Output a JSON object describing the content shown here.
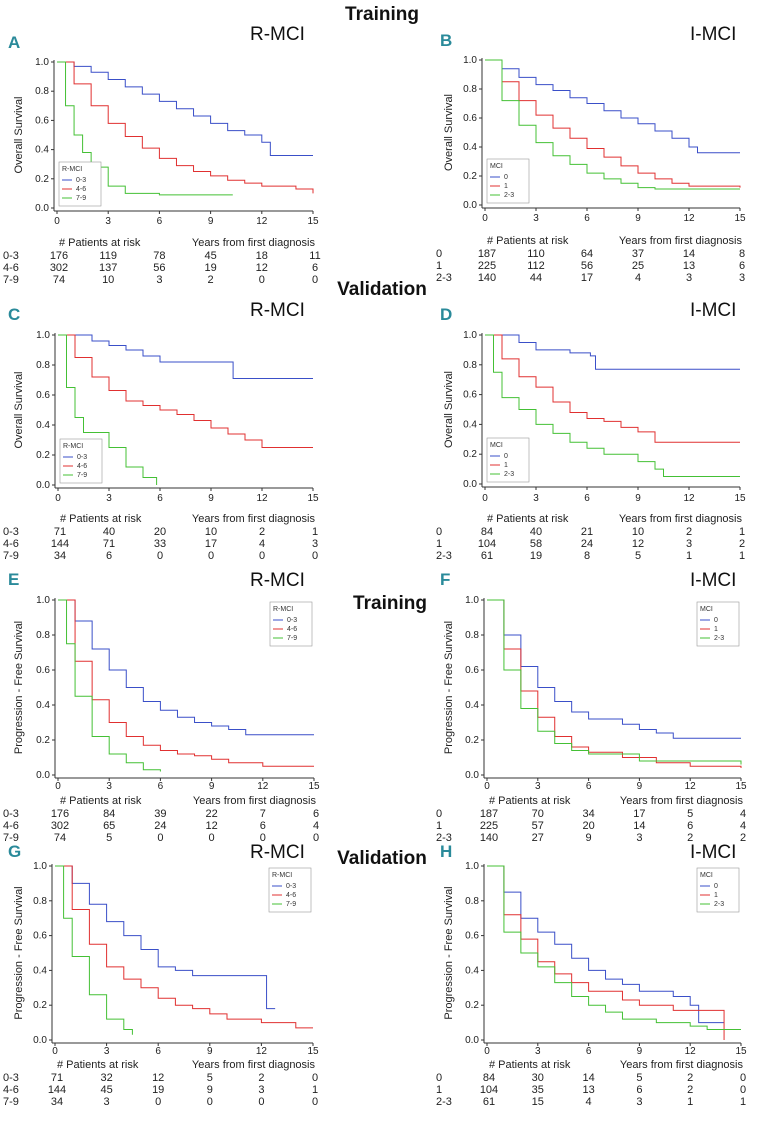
{
  "sections": [
    "Training",
    "Validation",
    "Training",
    "Validation"
  ],
  "common": {
    "risk_header": "# Patients at risk",
    "xlabel": "Years from first diagnosis",
    "x_ticks": [
      "0",
      "3",
      "6",
      "9",
      "12",
      "15"
    ],
    "y_ticks": [
      "0.0",
      "0.2",
      "0.4",
      "0.6",
      "0.8",
      "1.0"
    ]
  },
  "chart_data": [
    {
      "panel": "A",
      "title": "R-MCI",
      "type": "line",
      "ylabel": "Overall Survival",
      "legend_title": "R-MCI",
      "xlim": [
        0,
        15
      ],
      "ylim": [
        0,
        1
      ],
      "series": [
        {
          "name": "0-3",
          "color": "#3a4fc8",
          "x": [
            0,
            1,
            2,
            3,
            4,
            5,
            6,
            7,
            8,
            9,
            10,
            11,
            12,
            12.5,
            15
          ],
          "y": [
            1,
            0.97,
            0.93,
            0.88,
            0.83,
            0.78,
            0.73,
            0.68,
            0.63,
            0.58,
            0.53,
            0.5,
            0.45,
            0.36,
            0.36
          ]
        },
        {
          "name": "4-6",
          "color": "#e03030",
          "x": [
            0,
            1,
            2,
            3,
            4,
            5,
            6,
            7,
            8,
            9,
            10,
            11,
            12,
            14,
            15
          ],
          "y": [
            1,
            0.85,
            0.7,
            0.58,
            0.49,
            0.41,
            0.34,
            0.29,
            0.25,
            0.22,
            0.19,
            0.17,
            0.15,
            0.13,
            0.1
          ]
        },
        {
          "name": "7-9",
          "color": "#44c035",
          "x": [
            0,
            0.5,
            1,
            1.5,
            2,
            3,
            4,
            6,
            10.3
          ],
          "y": [
            1,
            0.7,
            0.5,
            0.38,
            0.28,
            0.15,
            0.1,
            0.09,
            0.09
          ]
        }
      ],
      "risk_table": [
        {
          "label": "0-3",
          "values": [
            "176",
            "119",
            "78",
            "45",
            "18",
            "11"
          ]
        },
        {
          "label": "4-6",
          "values": [
            "302",
            "137",
            "56",
            "19",
            "12",
            "6"
          ]
        },
        {
          "label": "7-9",
          "values": [
            "74",
            "10",
            "3",
            "2",
            "0",
            "0"
          ]
        }
      ]
    },
    {
      "panel": "B",
      "title": "I-MCI",
      "type": "line",
      "ylabel": "Overall Survival",
      "legend_title": "MCI",
      "xlim": [
        0,
        15
      ],
      "ylim": [
        0,
        1
      ],
      "series": [
        {
          "name": "0",
          "color": "#3a4fc8",
          "x": [
            0,
            1,
            2,
            3,
            4,
            5,
            6,
            7,
            8,
            9,
            10,
            11,
            12,
            12.5,
            15
          ],
          "y": [
            1,
            0.94,
            0.88,
            0.83,
            0.79,
            0.74,
            0.7,
            0.65,
            0.6,
            0.56,
            0.51,
            0.46,
            0.4,
            0.36,
            0.36
          ]
        },
        {
          "name": "1",
          "color": "#e03030",
          "x": [
            0,
            1,
            2,
            3,
            4,
            5,
            6,
            7,
            8,
            9,
            10,
            11,
            12,
            15
          ],
          "y": [
            1,
            0.85,
            0.72,
            0.62,
            0.53,
            0.46,
            0.39,
            0.33,
            0.27,
            0.22,
            0.18,
            0.15,
            0.13,
            0.12
          ]
        },
        {
          "name": "2-3",
          "color": "#44c035",
          "x": [
            0,
            1,
            2,
            3,
            4,
            5,
            6,
            7,
            8,
            9,
            10,
            15
          ],
          "y": [
            1,
            0.72,
            0.55,
            0.43,
            0.34,
            0.28,
            0.22,
            0.18,
            0.15,
            0.12,
            0.11,
            0.11
          ]
        }
      ],
      "risk_table": [
        {
          "label": "0",
          "values": [
            "187",
            "110",
            "64",
            "37",
            "14",
            "8"
          ]
        },
        {
          "label": "1",
          "values": [
            "225",
            "112",
            "56",
            "25",
            "13",
            "6"
          ]
        },
        {
          "label": "2-3",
          "values": [
            "140",
            "44",
            "17",
            "4",
            "3",
            "3"
          ]
        }
      ]
    },
    {
      "panel": "C",
      "title": "R-MCI",
      "type": "line",
      "ylabel": "Overall Survival",
      "legend_title": "R-MCI",
      "xlim": [
        0,
        15
      ],
      "ylim": [
        0,
        1
      ],
      "series": [
        {
          "name": "0-3",
          "color": "#3a4fc8",
          "x": [
            0,
            2,
            3,
            4,
            5,
            6,
            10.3,
            10.3,
            15
          ],
          "y": [
            1,
            0.96,
            0.93,
            0.9,
            0.86,
            0.82,
            0.82,
            0.71,
            0.71
          ]
        },
        {
          "name": "4-6",
          "color": "#e03030",
          "x": [
            0,
            1,
            2,
            3,
            4,
            5,
            6,
            7,
            8,
            9,
            10,
            11,
            12,
            15
          ],
          "y": [
            1,
            0.85,
            0.72,
            0.63,
            0.56,
            0.53,
            0.5,
            0.47,
            0.43,
            0.38,
            0.34,
            0.3,
            0.25,
            0.25
          ]
        },
        {
          "name": "7-9",
          "color": "#44c035",
          "x": [
            0,
            0.5,
            1,
            1.5,
            3,
            4,
            5,
            5.8
          ],
          "y": [
            1,
            0.65,
            0.45,
            0.35,
            0.25,
            0.12,
            0.05,
            0
          ]
        }
      ],
      "risk_table": [
        {
          "label": "0-3",
          "values": [
            "71",
            "40",
            "20",
            "10",
            "2",
            "1"
          ]
        },
        {
          "label": "4-6",
          "values": [
            "144",
            "71",
            "33",
            "17",
            "4",
            "3"
          ]
        },
        {
          "label": "7-9",
          "values": [
            "34",
            "6",
            "0",
            "0",
            "0",
            "0"
          ]
        }
      ]
    },
    {
      "panel": "D",
      "title": "I-MCI",
      "type": "line",
      "ylabel": "Overall Survival",
      "legend_title": "MCI",
      "xlim": [
        0,
        15
      ],
      "ylim": [
        0,
        1
      ],
      "series": [
        {
          "name": "0",
          "color": "#3a4fc8",
          "x": [
            0,
            2,
            3,
            5,
            6.2,
            6.5,
            15
          ],
          "y": [
            1,
            0.95,
            0.9,
            0.88,
            0.86,
            0.77,
            0.77
          ]
        },
        {
          "name": "1",
          "color": "#e03030",
          "x": [
            0,
            1,
            2,
            3,
            4,
            5,
            6,
            7,
            8,
            9,
            10,
            15
          ],
          "y": [
            1,
            0.84,
            0.72,
            0.65,
            0.55,
            0.48,
            0.44,
            0.42,
            0.38,
            0.35,
            0.28,
            0.28
          ]
        },
        {
          "name": "2-3",
          "color": "#44c035",
          "x": [
            0,
            0.5,
            1,
            2,
            3,
            4,
            5,
            6,
            7,
            9,
            10,
            10.5,
            15
          ],
          "y": [
            1,
            0.75,
            0.58,
            0.5,
            0.4,
            0.34,
            0.28,
            0.24,
            0.2,
            0.15,
            0.1,
            0.05,
            0.05
          ]
        }
      ],
      "risk_table": [
        {
          "label": "0",
          "values": [
            "84",
            "40",
            "21",
            "10",
            "2",
            "1"
          ]
        },
        {
          "label": "1",
          "values": [
            "104",
            "58",
            "24",
            "12",
            "3",
            "2"
          ]
        },
        {
          "label": "2-3",
          "values": [
            "61",
            "19",
            "8",
            "5",
            "1",
            "1"
          ]
        }
      ]
    },
    {
      "panel": "E",
      "title": "R-MCI",
      "type": "line",
      "ylabel": "Progression - Free Survival",
      "legend_title": "R-MCI",
      "xlim": [
        0,
        15
      ],
      "ylim": [
        0,
        1
      ],
      "series": [
        {
          "name": "0-3",
          "color": "#3a4fc8",
          "x": [
            0,
            1,
            2,
            3,
            4,
            5,
            6,
            7,
            8,
            9,
            10,
            11,
            15
          ],
          "y": [
            1,
            0.88,
            0.72,
            0.6,
            0.5,
            0.42,
            0.37,
            0.33,
            0.3,
            0.28,
            0.26,
            0.23,
            0.23
          ]
        },
        {
          "name": "4-6",
          "color": "#e03030",
          "x": [
            0,
            1,
            2,
            3,
            4,
            5,
            6,
            7,
            8,
            9,
            10,
            12,
            15
          ],
          "y": [
            1,
            0.65,
            0.43,
            0.3,
            0.22,
            0.17,
            0.14,
            0.12,
            0.11,
            0.09,
            0.07,
            0.05,
            0.05
          ]
        },
        {
          "name": "7-9",
          "color": "#44c035",
          "x": [
            0,
            0.5,
            1,
            2,
            3,
            4,
            5,
            6
          ],
          "y": [
            1,
            0.75,
            0.45,
            0.22,
            0.12,
            0.07,
            0.03,
            0.02
          ]
        }
      ],
      "risk_table": [
        {
          "label": "0-3",
          "values": [
            "176",
            "84",
            "39",
            "22",
            "7",
            "6"
          ]
        },
        {
          "label": "4-6",
          "values": [
            "302",
            "65",
            "24",
            "12",
            "6",
            "4"
          ]
        },
        {
          "label": "7-9",
          "values": [
            "74",
            "5",
            "0",
            "0",
            "0",
            "0"
          ]
        }
      ]
    },
    {
      "panel": "F",
      "title": "I-MCI",
      "type": "line",
      "ylabel": "Progression - Free Survival",
      "legend_title": "MCI",
      "xlim": [
        0,
        15
      ],
      "ylim": [
        0,
        1
      ],
      "series": [
        {
          "name": "0",
          "color": "#3a4fc8",
          "x": [
            0,
            1,
            2,
            3,
            4,
            5,
            6,
            8,
            9,
            10,
            11,
            15
          ],
          "y": [
            1,
            0.8,
            0.62,
            0.5,
            0.42,
            0.36,
            0.32,
            0.29,
            0.26,
            0.24,
            0.21,
            0.21
          ]
        },
        {
          "name": "1",
          "color": "#e03030",
          "x": [
            0,
            1,
            2,
            3,
            4,
            5,
            6,
            8,
            10,
            12,
            15
          ],
          "y": [
            1,
            0.72,
            0.48,
            0.33,
            0.22,
            0.16,
            0.13,
            0.1,
            0.07,
            0.05,
            0.04
          ]
        },
        {
          "name": "2-3",
          "color": "#44c035",
          "x": [
            0,
            1,
            2,
            3,
            4,
            5,
            6,
            9,
            15
          ],
          "y": [
            1,
            0.6,
            0.38,
            0.25,
            0.18,
            0.14,
            0.12,
            0.08,
            0.06
          ]
        }
      ],
      "risk_table": [
        {
          "label": "0",
          "values": [
            "187",
            "70",
            "34",
            "17",
            "5",
            "4"
          ]
        },
        {
          "label": "1",
          "values": [
            "225",
            "57",
            "20",
            "14",
            "6",
            "4"
          ]
        },
        {
          "label": "2-3",
          "values": [
            "140",
            "27",
            "9",
            "3",
            "2",
            "2"
          ]
        }
      ]
    },
    {
      "panel": "G",
      "title": "R-MCI",
      "type": "line",
      "ylabel": "Progression - Free Survival",
      "legend_title": "R-MCI",
      "xlim": [
        0,
        15
      ],
      "ylim": [
        0,
        1
      ],
      "series": [
        {
          "name": "0-3",
          "color": "#3a4fc8",
          "x": [
            0,
            1,
            2,
            3,
            4,
            5,
            6,
            7,
            8,
            12.3,
            12.3,
            12.8
          ],
          "y": [
            1,
            0.9,
            0.78,
            0.68,
            0.6,
            0.52,
            0.42,
            0.4,
            0.37,
            0.37,
            0.18,
            0.18
          ]
        },
        {
          "name": "4-6",
          "color": "#e03030",
          "x": [
            0,
            1,
            2,
            3,
            4,
            5,
            6,
            7,
            8,
            9,
            10,
            12,
            14,
            15
          ],
          "y": [
            1,
            0.75,
            0.55,
            0.42,
            0.35,
            0.3,
            0.24,
            0.2,
            0.18,
            0.15,
            0.12,
            0.1,
            0.07,
            0.07
          ]
        },
        {
          "name": "7-9",
          "color": "#44c035",
          "x": [
            0,
            0.5,
            1,
            2,
            3,
            4,
            4.5
          ],
          "y": [
            1,
            0.7,
            0.48,
            0.26,
            0.12,
            0.06,
            0.03
          ]
        }
      ],
      "risk_table": [
        {
          "label": "0-3",
          "values": [
            "71",
            "32",
            "12",
            "5",
            "2",
            "0"
          ]
        },
        {
          "label": "4-6",
          "values": [
            "144",
            "45",
            "19",
            "9",
            "3",
            "1"
          ]
        },
        {
          "label": "7-9",
          "values": [
            "34",
            "3",
            "0",
            "0",
            "0",
            "0"
          ]
        }
      ]
    },
    {
      "panel": "H",
      "title": "I-MCI",
      "type": "line",
      "ylabel": "Progression - Free Survival",
      "legend_title": "MCI",
      "xlim": [
        0,
        15
      ],
      "ylim": [
        0,
        1
      ],
      "series": [
        {
          "name": "0",
          "color": "#3a4fc8",
          "x": [
            0,
            1,
            2,
            3,
            4,
            5,
            6,
            7,
            8,
            9,
            11,
            12,
            12.5,
            14
          ],
          "y": [
            1,
            0.85,
            0.7,
            0.62,
            0.55,
            0.47,
            0.4,
            0.35,
            0.32,
            0.28,
            0.25,
            0.2,
            0.1,
            0.1
          ]
        },
        {
          "name": "1",
          "color": "#e03030",
          "x": [
            0,
            1,
            2,
            3,
            4,
            5,
            6,
            8,
            9,
            11,
            14,
            14
          ],
          "y": [
            1,
            0.72,
            0.58,
            0.45,
            0.38,
            0.33,
            0.28,
            0.23,
            0.2,
            0.17,
            0.17,
            0
          ]
        },
        {
          "name": "2-3",
          "color": "#44c035",
          "x": [
            0,
            1,
            2,
            3,
            4,
            5,
            6,
            7,
            8,
            10,
            12,
            13,
            15
          ],
          "y": [
            1,
            0.62,
            0.5,
            0.42,
            0.33,
            0.25,
            0.2,
            0.16,
            0.12,
            0.1,
            0.08,
            0.06,
            0.06
          ]
        }
      ],
      "risk_table": [
        {
          "label": "0",
          "values": [
            "84",
            "30",
            "14",
            "5",
            "2",
            "0"
          ]
        },
        {
          "label": "1",
          "values": [
            "104",
            "35",
            "13",
            "6",
            "2",
            "0"
          ]
        },
        {
          "label": "2-3",
          "values": [
            "61",
            "15",
            "4",
            "3",
            "1",
            "1"
          ]
        }
      ]
    }
  ]
}
